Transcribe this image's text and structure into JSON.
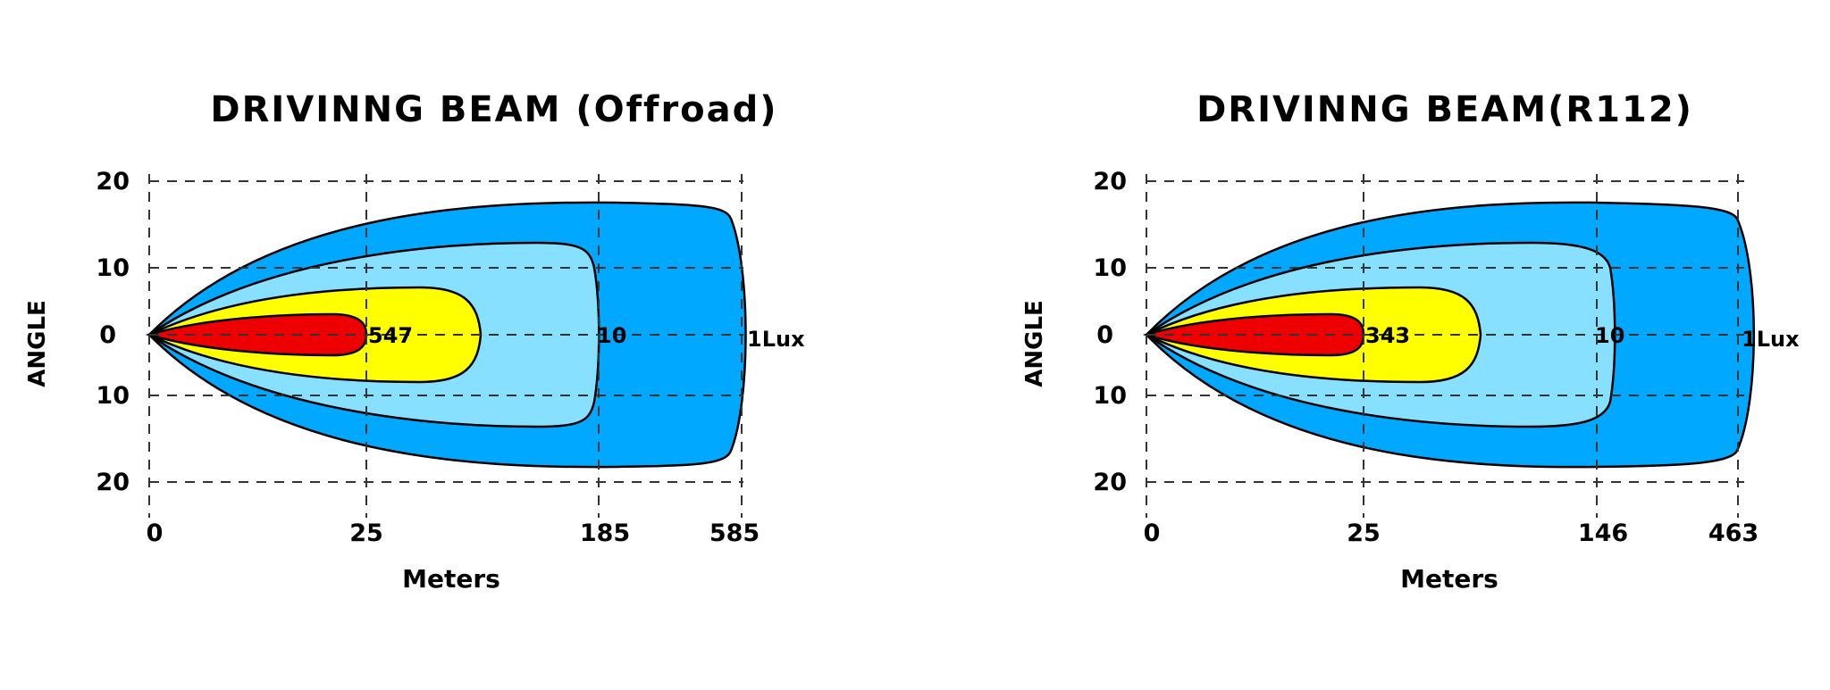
{
  "chart_data": [
    {
      "type": "area",
      "title": "DRIVINNG  BEAM (Offroad)",
      "xlabel": "Meters",
      "ylabel": "ANGLE",
      "x_ticks": [
        "0",
        "25",
        "185",
        "585"
      ],
      "y_ticks": [
        "20",
        "10",
        "0",
        "10",
        "20"
      ],
      "grid": true,
      "zones": [
        {
          "label": "1Lux",
          "reach_m": 585,
          "color": "#00a9ff"
        },
        {
          "label": "10",
          "reach_m": 185,
          "color": "#87e0ff"
        },
        {
          "label": "",
          "reach_m": 65,
          "color": "#ffff00"
        },
        {
          "label": "547",
          "reach_m": 25,
          "color": "#ee0000"
        }
      ]
    },
    {
      "type": "area",
      "title": "DRIVINNG  BEAM(R112)",
      "xlabel": "Meters",
      "ylabel": "ANGLE",
      "x_ticks": [
        "0",
        "25",
        "146",
        "463"
      ],
      "y_ticks": [
        "20",
        "10",
        "0",
        "10",
        "20"
      ],
      "grid": true,
      "zones": [
        {
          "label": "1Lux",
          "reach_m": 463,
          "color": "#00a9ff"
        },
        {
          "label": "10",
          "reach_m": 146,
          "color": "#87e0ff"
        },
        {
          "label": "",
          "reach_m": 55,
          "color": "#ffff00"
        },
        {
          "label": "343",
          "reach_m": 25,
          "color": "#ee0000"
        }
      ]
    }
  ]
}
